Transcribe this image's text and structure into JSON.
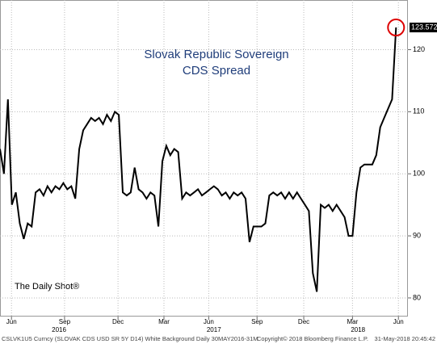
{
  "chart_data": {
    "type": "line",
    "title": [
      "Slovak Republic Sovereign",
      "CDS Spread"
    ],
    "annotation": "The Daily Shot®",
    "series": [
      {
        "name": "SLOVAK CDS USD SR 5Y D14",
        "color": "#000000",
        "values": [
          104,
          100,
          112,
          95,
          97,
          92,
          89.5,
          92,
          91.5,
          97,
          97.5,
          96.5,
          98,
          97,
          98,
          97.5,
          98.5,
          97.5,
          98,
          96,
          104,
          107,
          108,
          109,
          108.5,
          109,
          108,
          109.5,
          108.5,
          110,
          109.5,
          97,
          96.5,
          97,
          101,
          97.5,
          97,
          96,
          97,
          96.5,
          91.5,
          102,
          104.5,
          103,
          104,
          103.5,
          96,
          97,
          96.5,
          97,
          97.5,
          96.5,
          97,
          97.5,
          98,
          97.5,
          96.5,
          97,
          96,
          97,
          96.5,
          97,
          96,
          89,
          91.5,
          91.5,
          91.5,
          92,
          96.5,
          97,
          96.5,
          97,
          96,
          97,
          96,
          97,
          96,
          95,
          94,
          84,
          81,
          95,
          94.5,
          95,
          94,
          95,
          94,
          93,
          90,
          90,
          97,
          101,
          101.5,
          101.5,
          101.5,
          103,
          107.5,
          109,
          110.5,
          112,
          123.572
        ]
      }
    ],
    "xlim": [
      0,
      103
    ],
    "xticks": [
      {
        "value": 2.9,
        "label": "Jun"
      },
      {
        "value": 16.3,
        "label": "Sep"
      },
      {
        "value": 29.8,
        "label": "Dec"
      },
      {
        "value": 41.4,
        "label": "Mar"
      },
      {
        "value": 52.7,
        "label": "Jun"
      },
      {
        "value": 64.9,
        "label": "Sep"
      },
      {
        "value": 76.7,
        "label": "Dec"
      },
      {
        "value": 89,
        "label": "Mar"
      },
      {
        "value": 100.6,
        "label": "Jun"
      }
    ],
    "year_labels": [
      {
        "value": 14.9,
        "label": "2016"
      },
      {
        "value": 54,
        "label": "2017"
      },
      {
        "value": 90.4,
        "label": "2018"
      }
    ],
    "ylim": [
      77,
      128
    ],
    "yticks": [
      80,
      90,
      100,
      110,
      120
    ],
    "grid": true,
    "footer": {
      "left": "CSLVK1U5 Curncy (SLOVAK CDS USD SR 5Y D14) White Background  Daily 30MAY2016-31M",
      "middle": "Copyright© 2018 Bloomberg Finance L.P.",
      "right": "31-May-2018 20:45:42"
    }
  }
}
